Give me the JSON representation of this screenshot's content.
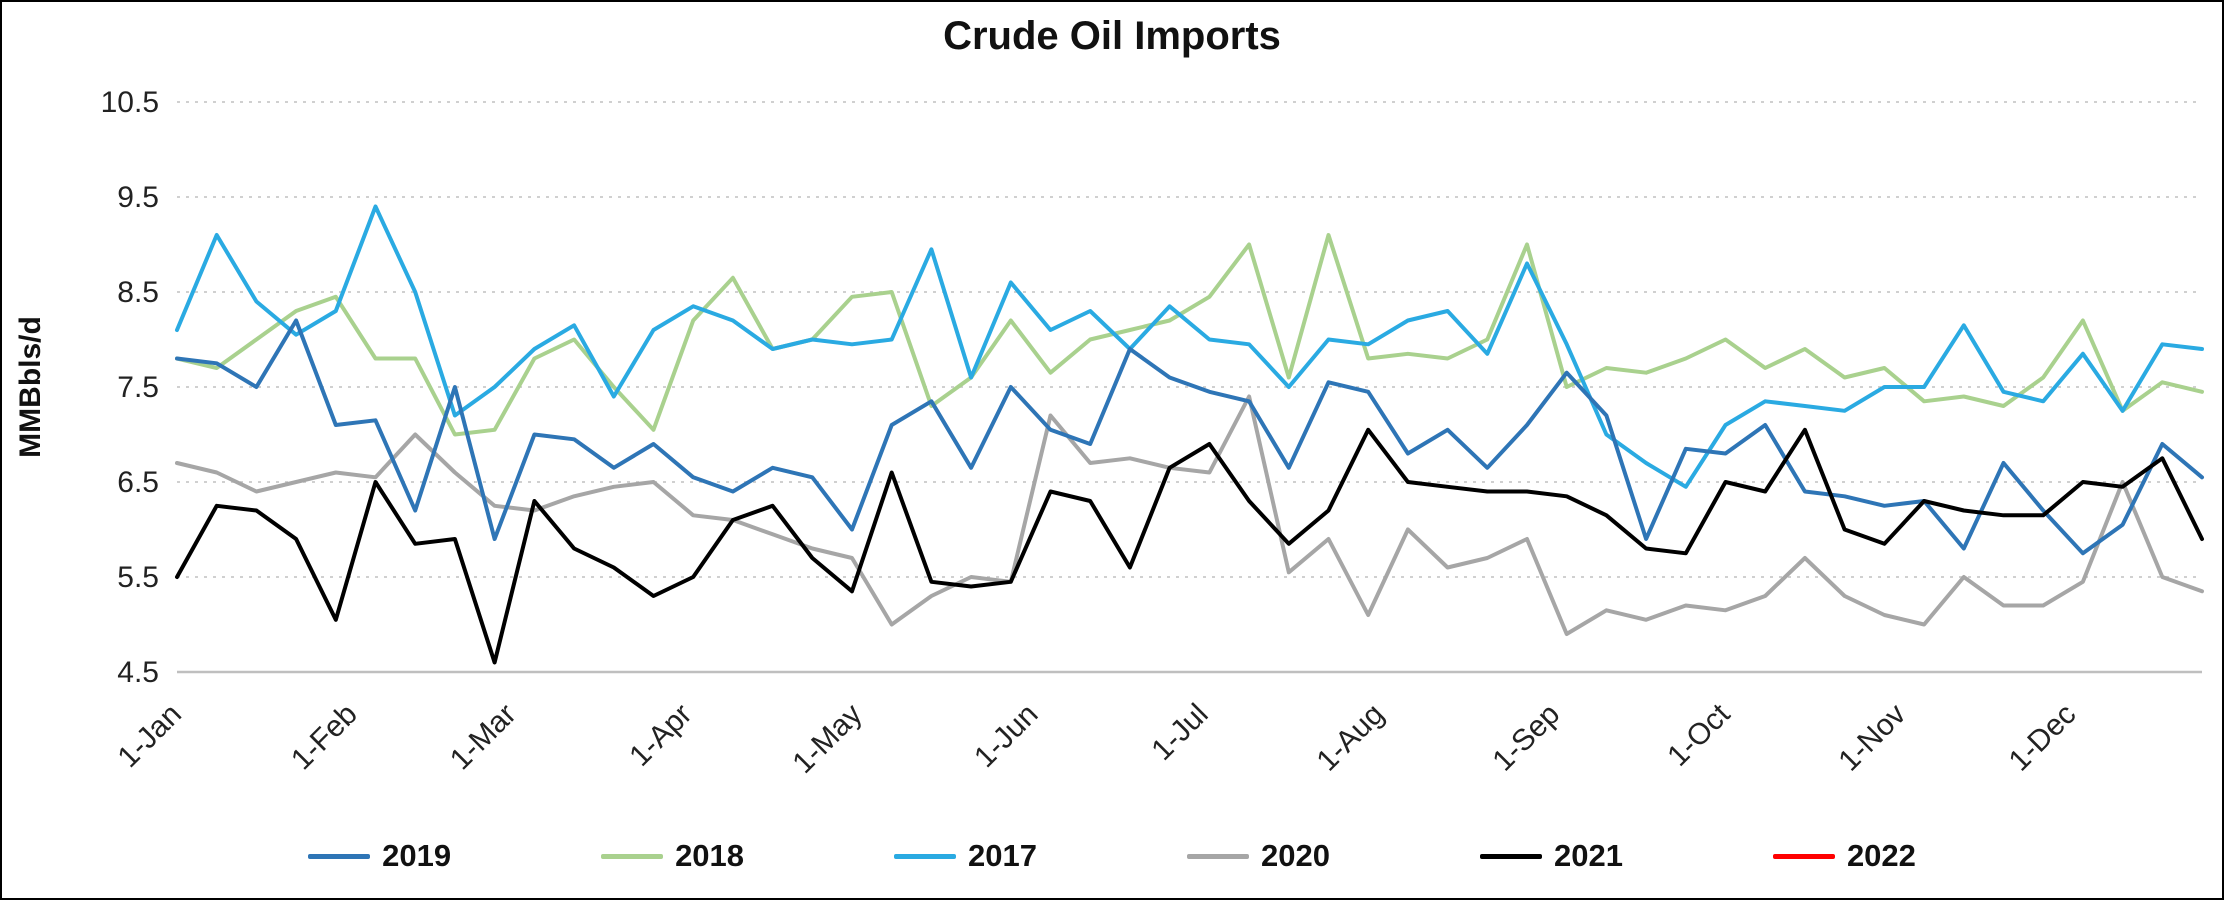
{
  "chart_data": {
    "type": "line",
    "title": "Crude Oil Imports",
    "xlabel": "",
    "ylabel": "MMBbls/d",
    "ylim": [
      4.5,
      10.5
    ],
    "yticks": [
      4.5,
      5.5,
      6.5,
      7.5,
      8.5,
      9.5,
      10.5
    ],
    "grid": "horizontal-dotted",
    "legend_position": "bottom",
    "x_unit": "weekly",
    "categories": [
      "1-Jan",
      "1-Feb",
      "1-Mar",
      "1-Apr",
      "1-May",
      "1-Jun",
      "1-Jul",
      "1-Aug",
      "1-Sep",
      "1-Oct",
      "1-Nov",
      "1-Dec"
    ],
    "series": [
      {
        "name": "2019",
        "color": "#2E75B6",
        "values": [
          7.8,
          7.75,
          7.5,
          8.2,
          7.1,
          7.15,
          6.2,
          7.5,
          5.9,
          7.0,
          6.95,
          6.65,
          6.9,
          6.55,
          6.4,
          6.65,
          6.55,
          6.0,
          7.1,
          7.35,
          6.65,
          7.5,
          7.05,
          6.9,
          7.9,
          7.6,
          7.45,
          7.35,
          6.65,
          7.55,
          7.45,
          6.8,
          7.05,
          6.65,
          7.1,
          7.65,
          7.2,
          5.9,
          6.85,
          6.8,
          7.1,
          6.4,
          6.35,
          6.25,
          6.3,
          5.8,
          6.7,
          6.2,
          5.75,
          6.05,
          6.9,
          6.55
        ]
      },
      {
        "name": "2018",
        "color": "#A9D18E",
        "values": [
          7.8,
          7.7,
          8.0,
          8.3,
          8.45,
          7.8,
          7.8,
          7.0,
          7.05,
          7.8,
          8.0,
          7.5,
          7.05,
          8.2,
          8.65,
          7.9,
          8.0,
          8.45,
          8.5,
          7.3,
          7.6,
          8.2,
          7.65,
          8.0,
          8.1,
          8.2,
          8.45,
          9.0,
          7.6,
          9.1,
          7.8,
          7.85,
          7.8,
          8.0,
          9.0,
          7.5,
          7.7,
          7.65,
          7.8,
          8.0,
          7.7,
          7.9,
          7.6,
          7.7,
          7.35,
          7.4,
          7.3,
          7.6,
          8.2,
          7.25,
          7.55,
          7.45
        ]
      },
      {
        "name": "2017",
        "color": "#2AAAE2",
        "values": [
          8.1,
          9.1,
          8.4,
          8.05,
          8.3,
          9.4,
          8.5,
          7.2,
          7.5,
          7.9,
          8.15,
          7.4,
          8.1,
          8.35,
          8.2,
          7.9,
          8.0,
          7.95,
          8.0,
          8.95,
          7.6,
          8.6,
          8.1,
          8.3,
          7.9,
          8.35,
          8.0,
          7.95,
          7.5,
          8.0,
          7.95,
          8.2,
          8.3,
          7.85,
          8.8,
          7.95,
          7.0,
          6.7,
          6.45,
          7.1,
          7.35,
          7.3,
          7.25,
          7.5,
          7.5,
          8.15,
          7.45,
          7.35,
          7.85,
          7.25,
          7.95,
          7.9
        ]
      },
      {
        "name": "2020",
        "color": "#A6A6A6",
        "values": [
          6.7,
          6.6,
          6.4,
          6.5,
          6.6,
          6.55,
          7.0,
          6.6,
          6.25,
          6.2,
          6.35,
          6.45,
          6.5,
          6.15,
          6.1,
          5.95,
          5.8,
          5.7,
          5.0,
          5.3,
          5.5,
          5.45,
          7.2,
          6.7,
          6.75,
          6.65,
          6.6,
          7.4,
          5.55,
          5.9,
          5.1,
          6.0,
          5.6,
          5.7,
          5.9,
          4.9,
          5.15,
          5.05,
          5.2,
          5.15,
          5.3,
          5.7,
          5.3,
          5.1,
          5.0,
          5.5,
          5.2,
          5.2,
          5.45,
          6.5,
          5.5,
          5.35
        ]
      },
      {
        "name": "2021",
        "color": "#000000",
        "values": [
          5.5,
          6.25,
          6.2,
          5.9,
          5.05,
          6.5,
          5.85,
          5.9,
          4.6,
          6.3,
          5.8,
          5.6,
          5.3,
          5.5,
          6.1,
          6.25,
          5.7,
          5.35,
          6.6,
          5.45,
          5.4,
          5.45,
          6.4,
          6.3,
          5.6,
          6.65,
          6.9,
          6.3,
          5.85,
          6.2,
          7.05,
          6.5,
          6.45,
          6.4,
          6.4,
          6.35,
          6.15,
          5.8,
          5.75,
          6.5,
          6.4,
          7.05,
          6.0,
          5.85,
          6.3,
          6.2,
          6.15,
          6.15,
          6.5,
          6.45,
          6.75,
          5.9
        ]
      },
      {
        "name": "2022",
        "color": "#FF0000",
        "values": []
      }
    ]
  }
}
